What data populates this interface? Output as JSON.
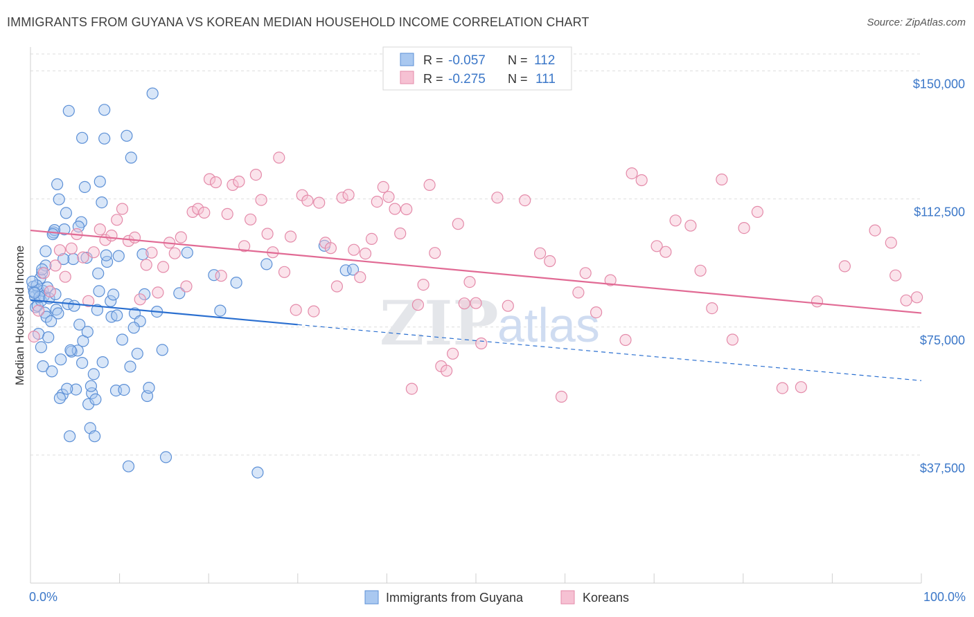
{
  "title": "IMMIGRANTS FROM GUYANA VS KOREAN MEDIAN HOUSEHOLD INCOME CORRELATION CHART",
  "source": "Source: ZipAtlas.com",
  "watermark": {
    "zip": "ZIP",
    "atlas": "atlas"
  },
  "colors": {
    "blue_fill": "#a9c8f0",
    "blue_stroke": "#5b8fd6",
    "blue_line": "#2a6fd0",
    "pink_fill": "#f6c1d3",
    "pink_stroke": "#e48aa9",
    "pink_line": "#e16a94",
    "axis_text": "#3b77c8",
    "grid": "#dddddd"
  },
  "legend": {
    "r_label": "R =",
    "n_label": "N =",
    "rows": [
      {
        "series": "guyana",
        "r": "-0.057",
        "n": "112"
      },
      {
        "series": "korean",
        "r": "-0.275",
        "n": "111"
      }
    ]
  },
  "bottom_legend": [
    {
      "series": "guyana",
      "label": "Immigrants from Guyana"
    },
    {
      "series": "korean",
      "label": "Koreans"
    }
  ],
  "chart_data": {
    "type": "scatter",
    "ylabel": "Median Household Income",
    "xlim": [
      0,
      100
    ],
    "ylim": [
      0,
      157000
    ],
    "x_tick_labels": [
      "0.0%",
      "100.0%"
    ],
    "y_ticks": [
      {
        "value": 37500,
        "label": "$37,500"
      },
      {
        "value": 75000,
        "label": "$75,000"
      },
      {
        "value": 112500,
        "label": "$112,500"
      },
      {
        "value": 150000,
        "label": "$150,000"
      }
    ],
    "grid": "horizontal dashed",
    "legend_placement": "top-center",
    "series": [
      {
        "key": "guyana",
        "name": "Immigrants from Guyana",
        "trend": {
          "x0": 0,
          "y0": 82900,
          "x1": 30,
          "y1": 75700,
          "dash_to_x": 100,
          "dash_to_y": 59300
        },
        "points": [
          [
            0.3,
            86800
          ],
          [
            0.5,
            84000
          ],
          [
            0.6,
            80800
          ],
          [
            0.8,
            81200
          ],
          [
            0.9,
            85800
          ],
          [
            1.1,
            89300
          ],
          [
            1.2,
            82700
          ],
          [
            1.3,
            90900
          ],
          [
            1.4,
            85600
          ],
          [
            1.5,
            84100
          ],
          [
            1.6,
            79200
          ],
          [
            1.8,
            78000
          ],
          [
            0.4,
            85400
          ],
          [
            0.7,
            87200
          ],
          [
            1.0,
            83800
          ],
          [
            1.2,
            69100
          ],
          [
            1.4,
            63500
          ],
          [
            1.7,
            93000
          ],
          [
            1.9,
            86600
          ],
          [
            2.1,
            83400
          ],
          [
            2.3,
            76700
          ],
          [
            2.4,
            62000
          ],
          [
            2.6,
            102700
          ],
          [
            2.7,
            103400
          ],
          [
            2.8,
            84600
          ],
          [
            2.9,
            80100
          ],
          [
            3.1,
            79000
          ],
          [
            3.2,
            112400
          ],
          [
            3.4,
            65500
          ],
          [
            3.6,
            55200
          ],
          [
            3.8,
            103600
          ],
          [
            4.0,
            108400
          ],
          [
            4.2,
            81700
          ],
          [
            4.4,
            43000
          ],
          [
            4.6,
            67800
          ],
          [
            4.8,
            94900
          ],
          [
            5.1,
            56700
          ],
          [
            5.3,
            68100
          ],
          [
            5.5,
            75700
          ],
          [
            5.7,
            105700
          ],
          [
            5.9,
            70900
          ],
          [
            6.1,
            116000
          ],
          [
            6.3,
            95300
          ],
          [
            6.5,
            52400
          ],
          [
            6.7,
            45400
          ],
          [
            6.9,
            55600
          ],
          [
            7.1,
            61200
          ],
          [
            7.3,
            53800
          ],
          [
            7.5,
            80000
          ],
          [
            7.6,
            90700
          ],
          [
            7.8,
            117600
          ],
          [
            8.0,
            111500
          ],
          [
            8.3,
            130200
          ],
          [
            8.6,
            94100
          ],
          [
            9.0,
            82600
          ],
          [
            9.3,
            84500
          ],
          [
            9.6,
            56400
          ],
          [
            9.9,
            95800
          ],
          [
            10.3,
            71300
          ],
          [
            10.8,
            131000
          ],
          [
            11.2,
            63400
          ],
          [
            11.7,
            79000
          ],
          [
            12.3,
            76700
          ],
          [
            12.8,
            84600
          ],
          [
            13.1,
            54800
          ],
          [
            0.2,
            88300
          ],
          [
            0.45,
            85000
          ],
          [
            0.9,
            73000
          ],
          [
            1.3,
            91900
          ],
          [
            1.7,
            97200
          ],
          [
            2.0,
            72000
          ],
          [
            2.5,
            102200
          ],
          [
            3.0,
            116800
          ],
          [
            3.3,
            54200
          ],
          [
            3.7,
            94900
          ],
          [
            4.1,
            56900
          ],
          [
            4.5,
            68200
          ],
          [
            4.9,
            81200
          ],
          [
            5.4,
            104400
          ],
          [
            5.8,
            64500
          ],
          [
            6.4,
            73600
          ],
          [
            6.8,
            57700
          ],
          [
            7.2,
            43000
          ],
          [
            7.7,
            85500
          ],
          [
            8.1,
            64700
          ],
          [
            8.5,
            96000
          ],
          [
            9.1,
            78000
          ],
          [
            9.7,
            78400
          ],
          [
            10.5,
            56600
          ],
          [
            11.0,
            34200
          ],
          [
            11.6,
            74800
          ],
          [
            12.0,
            67200
          ],
          [
            12.6,
            96300
          ],
          [
            13.3,
            57200
          ],
          [
            14.2,
            79500
          ],
          [
            14.8,
            68300
          ],
          [
            15.2,
            36900
          ],
          [
            16.7,
            84900
          ],
          [
            17.6,
            96800
          ],
          [
            20.6,
            90200
          ],
          [
            21.3,
            79800
          ],
          [
            23.1,
            88000
          ],
          [
            25.5,
            32400
          ],
          [
            26.5,
            93400
          ],
          [
            33.0,
            98800
          ],
          [
            35.4,
            91600
          ],
          [
            36.2,
            91800
          ],
          [
            4.3,
            138300
          ],
          [
            5.8,
            130400
          ],
          [
            8.3,
            138600
          ],
          [
            11.3,
            124600
          ],
          [
            13.7,
            143400
          ]
        ]
      },
      {
        "key": "korean",
        "name": "Koreans",
        "trend": {
          "x0": 0,
          "y0": 103300,
          "x1": 100,
          "y1": 79100
        },
        "points": [
          [
            0.4,
            72200
          ],
          [
            0.9,
            79800
          ],
          [
            1.5,
            90800
          ],
          [
            2.2,
            85400
          ],
          [
            2.8,
            93000
          ],
          [
            3.3,
            97500
          ],
          [
            3.9,
            89700
          ],
          [
            4.6,
            98000
          ],
          [
            5.2,
            102200
          ],
          [
            5.9,
            95400
          ],
          [
            6.5,
            82600
          ],
          [
            7.1,
            96900
          ],
          [
            7.8,
            103600
          ],
          [
            8.4,
            100500
          ],
          [
            9.1,
            101800
          ],
          [
            9.7,
            106400
          ],
          [
            10.3,
            109600
          ],
          [
            11.0,
            100200
          ],
          [
            11.7,
            101200
          ],
          [
            12.3,
            83100
          ],
          [
            13.0,
            93200
          ],
          [
            13.6,
            96800
          ],
          [
            14.3,
            85100
          ],
          [
            14.9,
            92600
          ],
          [
            15.6,
            99700
          ],
          [
            16.2,
            96600
          ],
          [
            16.9,
            101300
          ],
          [
            17.5,
            86900
          ],
          [
            18.2,
            108700
          ],
          [
            18.8,
            109600
          ],
          [
            19.5,
            108500
          ],
          [
            20.1,
            118300
          ],
          [
            20.8,
            117400
          ],
          [
            21.4,
            90000
          ],
          [
            22.1,
            108100
          ],
          [
            22.7,
            116600
          ],
          [
            23.4,
            117600
          ],
          [
            24.0,
            98700
          ],
          [
            24.7,
            106500
          ],
          [
            25.3,
            119600
          ],
          [
            25.9,
            112200
          ],
          [
            26.6,
            102300
          ],
          [
            27.2,
            96900
          ],
          [
            27.9,
            124600
          ],
          [
            28.5,
            91100
          ],
          [
            29.2,
            101500
          ],
          [
            29.8,
            80000
          ],
          [
            30.5,
            113600
          ],
          [
            31.1,
            112000
          ],
          [
            31.8,
            79600
          ],
          [
            32.4,
            111400
          ],
          [
            33.1,
            99700
          ],
          [
            33.7,
            98100
          ],
          [
            34.4,
            86900
          ],
          [
            35.0,
            112900
          ],
          [
            35.7,
            113700
          ],
          [
            36.3,
            97600
          ],
          [
            37.0,
            89600
          ],
          [
            37.6,
            96500
          ],
          [
            38.3,
            100800
          ],
          [
            38.9,
            111700
          ],
          [
            39.6,
            116000
          ],
          [
            40.2,
            113100
          ],
          [
            40.9,
            109600
          ],
          [
            41.5,
            102400
          ],
          [
            42.2,
            109500
          ],
          [
            42.8,
            56900
          ],
          [
            43.5,
            81500
          ],
          [
            44.1,
            87400
          ],
          [
            44.8,
            116600
          ],
          [
            45.4,
            96700
          ],
          [
            46.1,
            63500
          ],
          [
            46.7,
            62200
          ],
          [
            47.4,
            67200
          ],
          [
            48.0,
            105200
          ],
          [
            48.7,
            81900
          ],
          [
            49.3,
            88200
          ],
          [
            50.0,
            82000
          ],
          [
            50.6,
            70200
          ],
          [
            52.4,
            112900
          ],
          [
            53.6,
            81200
          ],
          [
            55.5,
            112100
          ],
          [
            57.2,
            96600
          ],
          [
            58.3,
            94300
          ],
          [
            59.6,
            54600
          ],
          [
            61.5,
            85100
          ],
          [
            62.3,
            90800
          ],
          [
            63.5,
            79300
          ],
          [
            65.1,
            88700
          ],
          [
            66.8,
            71200
          ],
          [
            67.5,
            120000
          ],
          [
            68.6,
            118000
          ],
          [
            70.3,
            98700
          ],
          [
            71.3,
            97000
          ],
          [
            72.4,
            106200
          ],
          [
            74.1,
            104700
          ],
          [
            75.2,
            91500
          ],
          [
            76.5,
            80500
          ],
          [
            77.6,
            118200
          ],
          [
            78.8,
            71300
          ],
          [
            80.1,
            104000
          ],
          [
            81.6,
            108700
          ],
          [
            84.4,
            57100
          ],
          [
            86.5,
            57400
          ],
          [
            88.3,
            82500
          ],
          [
            91.4,
            92800
          ],
          [
            94.8,
            103300
          ],
          [
            96.6,
            99700
          ],
          [
            97.1,
            90100
          ],
          [
            98.3,
            82800
          ],
          [
            99.5,
            83700
          ]
        ]
      }
    ]
  }
}
